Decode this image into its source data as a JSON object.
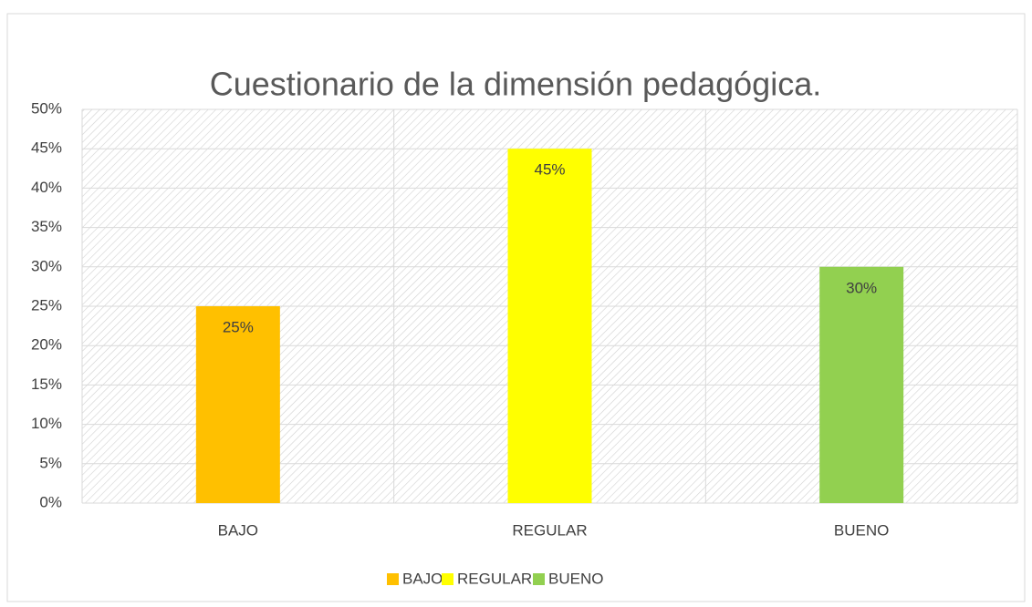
{
  "chart_data": {
    "type": "bar",
    "title": "Cuestionario de la dimensión pedagógica.",
    "categories": [
      "BAJO",
      "REGULAR",
      "BUENO"
    ],
    "values": [
      25,
      45,
      30
    ],
    "value_labels": [
      "25%",
      "45%",
      "30%"
    ],
    "colors": [
      "#ffc000",
      "#ffff00",
      "#92d050"
    ],
    "ylim": [
      0,
      50
    ],
    "yticks": [
      {
        "value": 0,
        "label": "0%"
      },
      {
        "value": 5,
        "label": "5%"
      },
      {
        "value": 10,
        "label": "10%"
      },
      {
        "value": 15,
        "label": "15%"
      },
      {
        "value": 20,
        "label": "20%"
      },
      {
        "value": 25,
        "label": "25%"
      },
      {
        "value": 30,
        "label": "30%"
      },
      {
        "value": 35,
        "label": "35%"
      },
      {
        "value": 40,
        "label": "40%"
      },
      {
        "value": 45,
        "label": "45%"
      },
      {
        "value": 50,
        "label": "50%"
      }
    ],
    "grid": true,
    "legend": "bottom"
  }
}
